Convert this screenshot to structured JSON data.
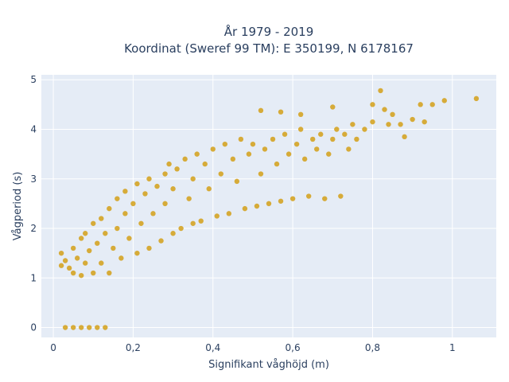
{
  "chart_data": {
    "type": "scatter",
    "title_line1": "År 1979 - 2019",
    "title_line2": "Koordinat (Sweref 99 TM): E 350199, N 6178167",
    "xlabel": "Signifikant våghöjd (m)",
    "ylabel": "Vågperiod (s)",
    "xlim": [
      -0.03,
      1.11
    ],
    "ylim": [
      -0.2,
      5.1
    ],
    "x_ticks": [
      0,
      0.2,
      0.4,
      0.6,
      0.8,
      1
    ],
    "x_tick_labels": [
      "0",
      "0,2",
      "0,4",
      "0,6",
      "0,8",
      "1"
    ],
    "y_ticks": [
      0,
      1,
      2,
      3,
      4,
      5
    ],
    "y_tick_labels": [
      "0",
      "1",
      "2",
      "3",
      "4",
      "5"
    ],
    "grid": true,
    "legend": "none",
    "colors": {
      "marker": "#d4a017",
      "plot_bg": "#e5ecf6",
      "paper_bg": "#ffffff",
      "text": "#2a3f5f"
    },
    "series": [
      {
        "values": [
          [
            0.03,
            0.0
          ],
          [
            0.05,
            0.0
          ],
          [
            0.07,
            0.0
          ],
          [
            0.09,
            0.0
          ],
          [
            0.11,
            0.0
          ],
          [
            0.13,
            0.0
          ],
          [
            0.02,
            1.25
          ],
          [
            0.02,
            1.5
          ],
          [
            0.03,
            1.35
          ],
          [
            0.04,
            1.2
          ],
          [
            0.05,
            1.1
          ],
          [
            0.05,
            1.6
          ],
          [
            0.06,
            1.4
          ],
          [
            0.07,
            1.8
          ],
          [
            0.07,
            1.05
          ],
          [
            0.08,
            1.3
          ],
          [
            0.08,
            1.9
          ],
          [
            0.09,
            1.55
          ],
          [
            0.1,
            1.1
          ],
          [
            0.1,
            2.1
          ],
          [
            0.11,
            1.7
          ],
          [
            0.12,
            1.3
          ],
          [
            0.12,
            2.2
          ],
          [
            0.13,
            1.9
          ],
          [
            0.14,
            1.1
          ],
          [
            0.14,
            2.4
          ],
          [
            0.15,
            1.6
          ],
          [
            0.16,
            2.0
          ],
          [
            0.16,
            2.6
          ],
          [
            0.17,
            1.4
          ],
          [
            0.18,
            2.3
          ],
          [
            0.18,
            2.75
          ],
          [
            0.19,
            1.8
          ],
          [
            0.2,
            2.5
          ],
          [
            0.21,
            1.5
          ],
          [
            0.21,
            2.9
          ],
          [
            0.22,
            2.1
          ],
          [
            0.23,
            2.7
          ],
          [
            0.24,
            1.6
          ],
          [
            0.24,
            3.0
          ],
          [
            0.25,
            2.3
          ],
          [
            0.26,
            2.85
          ],
          [
            0.27,
            1.75
          ],
          [
            0.28,
            3.1
          ],
          [
            0.28,
            2.5
          ],
          [
            0.29,
            3.3
          ],
          [
            0.3,
            1.9
          ],
          [
            0.3,
            2.8
          ],
          [
            0.31,
            3.2
          ],
          [
            0.32,
            2.0
          ],
          [
            0.33,
            3.4
          ],
          [
            0.34,
            2.6
          ],
          [
            0.35,
            2.1
          ],
          [
            0.35,
            3.0
          ],
          [
            0.36,
            3.5
          ],
          [
            0.37,
            2.15
          ],
          [
            0.38,
            3.3
          ],
          [
            0.39,
            2.8
          ],
          [
            0.4,
            3.6
          ],
          [
            0.41,
            2.25
          ],
          [
            0.42,
            3.1
          ],
          [
            0.43,
            3.7
          ],
          [
            0.44,
            2.3
          ],
          [
            0.45,
            3.4
          ],
          [
            0.46,
            2.95
          ],
          [
            0.47,
            3.8
          ],
          [
            0.48,
            2.4
          ],
          [
            0.49,
            3.5
          ],
          [
            0.5,
            3.7
          ],
          [
            0.51,
            2.45
          ],
          [
            0.52,
            3.1
          ],
          [
            0.53,
            3.6
          ],
          [
            0.54,
            2.5
          ],
          [
            0.55,
            3.8
          ],
          [
            0.56,
            3.3
          ],
          [
            0.57,
            2.55
          ],
          [
            0.58,
            3.9
          ],
          [
            0.59,
            3.5
          ],
          [
            0.6,
            2.6
          ],
          [
            0.61,
            3.7
          ],
          [
            0.62,
            4.0
          ],
          [
            0.63,
            3.4
          ],
          [
            0.64,
            2.65
          ],
          [
            0.65,
            3.8
          ],
          [
            0.66,
            3.6
          ],
          [
            0.67,
            3.9
          ],
          [
            0.68,
            2.6
          ],
          [
            0.69,
            3.5
          ],
          [
            0.7,
            3.8
          ],
          [
            0.71,
            4.0
          ],
          [
            0.72,
            2.65
          ],
          [
            0.73,
            3.9
          ],
          [
            0.74,
            3.6
          ],
          [
            0.75,
            4.1
          ],
          [
            0.76,
            3.8
          ],
          [
            0.78,
            4.0
          ],
          [
            0.8,
            4.15
          ],
          [
            0.82,
            4.78
          ],
          [
            0.83,
            4.4
          ],
          [
            0.84,
            4.1
          ],
          [
            0.85,
            4.3
          ],
          [
            0.87,
            4.1
          ],
          [
            0.88,
            3.85
          ],
          [
            0.9,
            4.2
          ],
          [
            0.92,
            4.5
          ],
          [
            0.93,
            4.15
          ],
          [
            0.95,
            4.5
          ],
          [
            0.98,
            4.58
          ],
          [
            1.06,
            4.62
          ],
          [
            0.52,
            4.38
          ],
          [
            0.57,
            4.35
          ],
          [
            0.62,
            4.3
          ],
          [
            0.7,
            4.45
          ],
          [
            0.8,
            4.5
          ]
        ]
      }
    ]
  }
}
